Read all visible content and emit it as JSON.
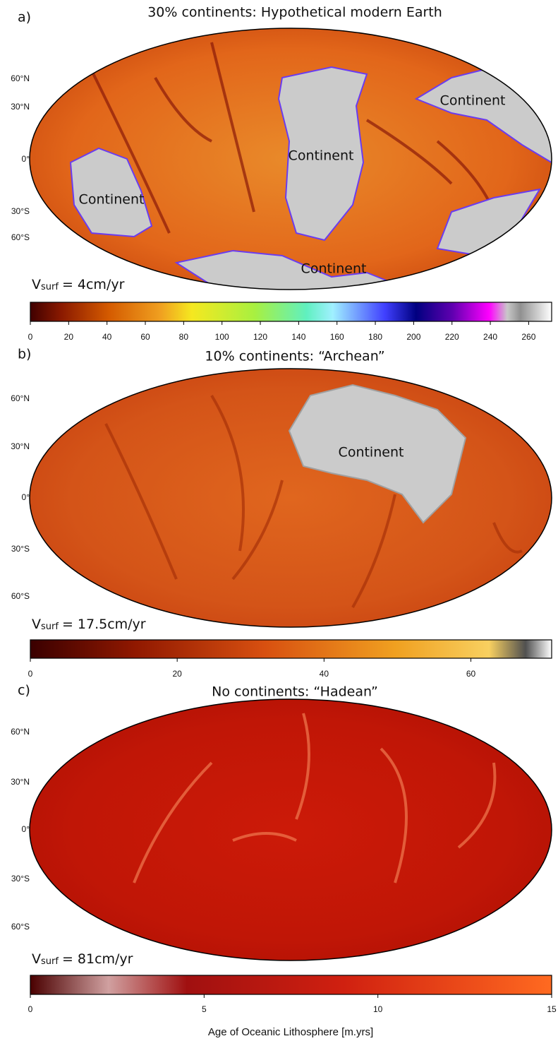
{
  "panels": [
    {
      "label": "a)",
      "title": "30% continents: Hypothetical modern Earth",
      "lat_labels": [
        "60°N",
        "30°N",
        "0°",
        "30°S",
        "60°S"
      ],
      "annotations": [
        "Continent",
        "Continent",
        "Continent",
        "Continent"
      ],
      "vsurf": {
        "symbol": "V",
        "subscript": "surf",
        "text": "= 4cm/yr"
      },
      "colorbar": {
        "lim": [
          0,
          272
        ],
        "ticks": [
          0,
          20,
          40,
          60,
          80,
          100,
          120,
          140,
          160,
          180,
          200,
          220,
          240,
          260
        ]
      }
    },
    {
      "label": "b)",
      "title": "10% continents: “Archean”",
      "lat_labels": [
        "60°N",
        "30°N",
        "0°",
        "30°S",
        "60°S"
      ],
      "annotations": [
        "Continent"
      ],
      "vsurf": {
        "symbol": "V",
        "subscript": "surf",
        "text": "= 17.5cm/yr"
      },
      "colorbar": {
        "lim": [
          0,
          71
        ],
        "ticks": [
          0,
          20,
          40,
          60
        ]
      }
    },
    {
      "label": "c)",
      "title": "No continents: “Hadean”",
      "lat_labels": [
        "60°N",
        "30°N",
        "0°",
        "30°S",
        "60°S"
      ],
      "annotations": [],
      "vsurf": {
        "symbol": "V",
        "subscript": "surf",
        "text": "= 81cm/yr"
      },
      "colorbar": {
        "lim": [
          0,
          15
        ],
        "ticks": [
          0,
          5,
          10,
          15
        ]
      }
    }
  ],
  "xlabel": "Age of Oceanic Lithosphere [m.yrs]"
}
